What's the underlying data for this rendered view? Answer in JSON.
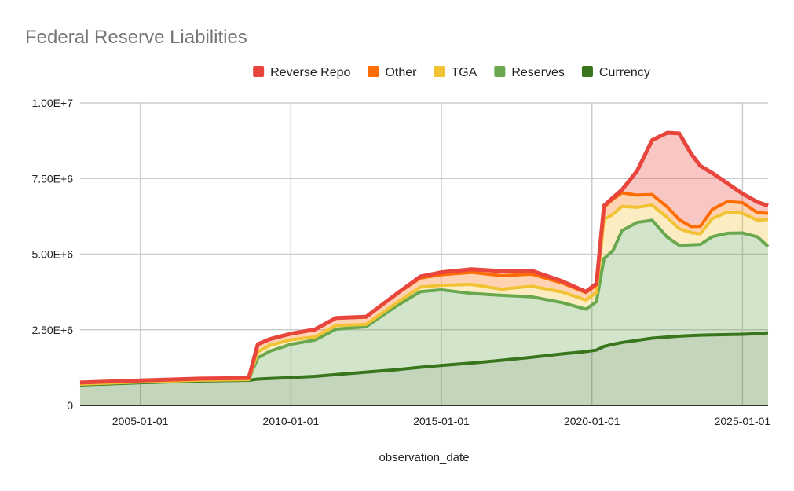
{
  "chart_data": {
    "type": "area",
    "stacked": true,
    "title": "Federal Reserve Liabilities",
    "xlabel": "observation_date",
    "ylabel": "",
    "xlim": [
      2003.0,
      2025.85
    ],
    "ylim": [
      0,
      10000000
    ],
    "y_ticks": [
      0,
      2500000,
      5000000,
      7500000,
      10000000
    ],
    "y_tick_labels": [
      "0",
      "2.50E+6",
      "5.00E+6",
      "7.50E+6",
      "1.00E+7"
    ],
    "x_ticks": [
      2005,
      2010,
      2015,
      2020,
      2025
    ],
    "x_tick_labels": [
      "2005-01-01",
      "2010-01-01",
      "2015-01-01",
      "2020-01-01",
      "2025-01-01"
    ],
    "grid": true,
    "legend_position": "top-center",
    "x": [
      2003.0,
      2005.0,
      2007.0,
      2008.6,
      2008.9,
      2009.3,
      2010.0,
      2010.8,
      2011.5,
      2012.5,
      2013.5,
      2014.3,
      2015.0,
      2016.0,
      2017.0,
      2018.0,
      2019.0,
      2019.8,
      2020.15,
      2020.4,
      2020.7,
      2021.0,
      2021.5,
      2022.0,
      2022.5,
      2022.9,
      2023.3,
      2023.6,
      2024.0,
      2024.5,
      2025.0,
      2025.5,
      2025.85
    ],
    "series": [
      {
        "name": "Currency",
        "color": "#38761d",
        "values": [
          680000,
          750000,
          810000,
          830000,
          870000,
          890000,
          920000,
          960000,
          1020000,
          1100000,
          1180000,
          1260000,
          1320000,
          1400000,
          1490000,
          1590000,
          1700000,
          1780000,
          1830000,
          1950000,
          2020000,
          2080000,
          2150000,
          2220000,
          2260000,
          2290000,
          2310000,
          2320000,
          2330000,
          2340000,
          2350000,
          2370000,
          2400000
        ]
      },
      {
        "name": "Reserves",
        "color": "#6aa84f",
        "values": [
          20000,
          20000,
          20000,
          20000,
          700000,
          900000,
          1100000,
          1200000,
          1500000,
          1500000,
          2100000,
          2500000,
          2500000,
          2300000,
          2150000,
          2000000,
          1700000,
          1400000,
          1600000,
          2900000,
          3100000,
          3700000,
          3900000,
          3900000,
          3300000,
          3000000,
          3000000,
          3000000,
          3250000,
          3350000,
          3350000,
          3200000,
          2850000
        ]
      },
      {
        "name": "TGA",
        "color": "#f1c232",
        "values": [
          5000,
          5000,
          5000,
          5000,
          200000,
          200000,
          150000,
          100000,
          120000,
          80000,
          100000,
          150000,
          150000,
          300000,
          200000,
          350000,
          350000,
          300000,
          300000,
          1300000,
          1200000,
          800000,
          500000,
          500000,
          650000,
          550000,
          400000,
          350000,
          600000,
          700000,
          650000,
          550000,
          900000
        ]
      },
      {
        "name": "Other",
        "color": "#ff6d01",
        "values": [
          50000,
          50000,
          50000,
          50000,
          250000,
          200000,
          200000,
          250000,
          250000,
          250000,
          300000,
          300000,
          350000,
          400000,
          450000,
          400000,
          300000,
          250000,
          250000,
          400000,
          500000,
          450000,
          400000,
          350000,
          350000,
          300000,
          200000,
          250000,
          300000,
          350000,
          350000,
          250000,
          200000
        ]
      },
      {
        "name": "Reverse Repo",
        "color": "#e8453c",
        "values": [
          0,
          0,
          0,
          0,
          0,
          0,
          0,
          0,
          0,
          0,
          0,
          50000,
          80000,
          100000,
          150000,
          110000,
          60000,
          30000,
          50000,
          50000,
          50000,
          100000,
          800000,
          1800000,
          2450000,
          2850000,
          2400000,
          2000000,
          1200000,
          600000,
          300000,
          350000,
          250000
        ]
      }
    ]
  }
}
